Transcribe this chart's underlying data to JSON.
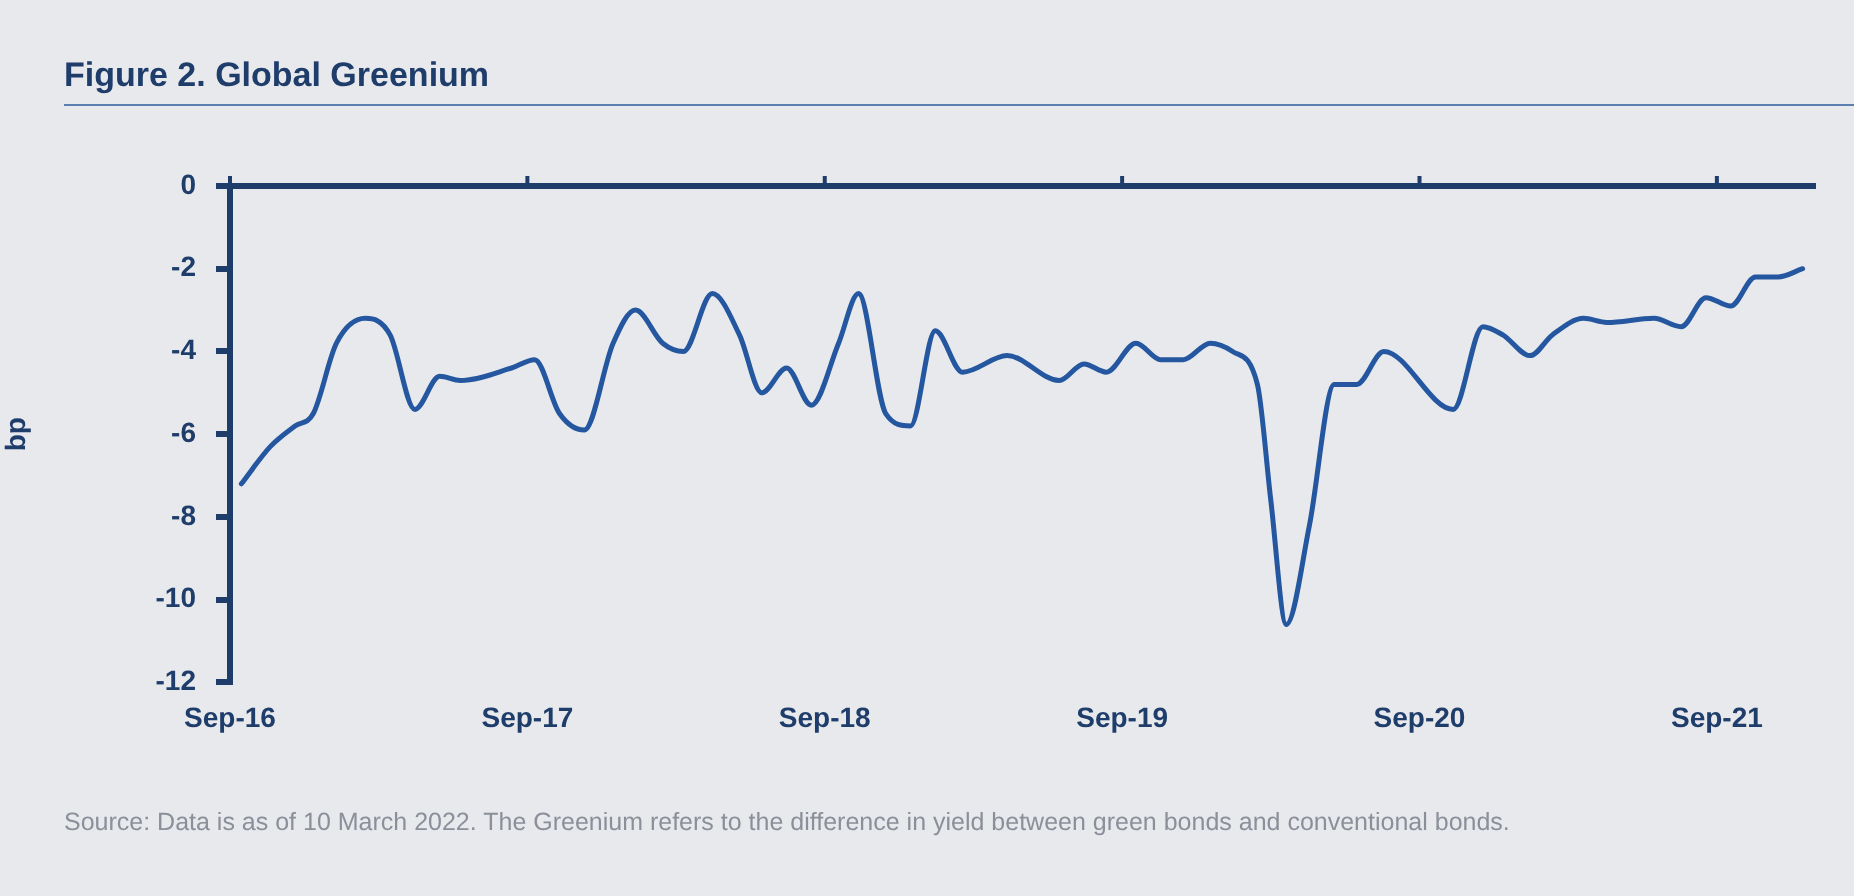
{
  "chart_data": {
    "type": "line",
    "title": "Figure 2. Global Greenium",
    "ylabel": "bp",
    "annotations": [
      "Source: Data is as of 10 March 2022. The Greenium refers to the difference in yield between green bonds and conventional bonds."
    ],
    "x": [
      "2016-09-15",
      "2016-10-20",
      "2016-11-20",
      "2016-12-12",
      "2017-01-10",
      "2017-02-15",
      "2017-03-15",
      "2017-04-15",
      "2017-05-15",
      "2017-06-10",
      "2017-08-12",
      "2017-09-10",
      "2017-10-10",
      "2017-11-10",
      "2017-12-15",
      "2018-01-12",
      "2018-02-15",
      "2018-03-10",
      "2018-04-15",
      "2018-05-18",
      "2018-06-15",
      "2018-07-15",
      "2018-08-15",
      "2018-09-18",
      "2018-10-12",
      "2018-11-15",
      "2018-12-15",
      "2019-01-15",
      "2019-02-18",
      "2019-04-12",
      "2019-06-15",
      "2019-07-15",
      "2019-08-12",
      "2019-09-18",
      "2019-10-18",
      "2019-11-15",
      "2019-12-18",
      "2020-01-15",
      "2020-02-15",
      "2020-03-01",
      "2020-03-20",
      "2020-04-18",
      "2020-05-18",
      "2020-06-15",
      "2020-07-18",
      "2020-10-12",
      "2020-11-18",
      "2020-12-12",
      "2021-01-15",
      "2021-02-12",
      "2021-03-20",
      "2021-04-18",
      "2021-06-15",
      "2021-07-18",
      "2021-08-18",
      "2021-09-18",
      "2021-10-18",
      "2021-11-15",
      "2021-12-15"
    ],
    "series": [
      {
        "color": "#2457a0",
        "values": [
          -7.2,
          -6.3,
          -5.8,
          -5.5,
          -3.8,
          -3.2,
          -3.6,
          -5.4,
          -4.6,
          -4.7,
          -4.4,
          -4.2,
          -5.5,
          -5.9,
          -3.8,
          -3.0,
          -3.8,
          -4.0,
          -2.6,
          -3.6,
          -5.0,
          -4.4,
          -5.3,
          -3.8,
          -2.6,
          -5.5,
          -5.8,
          -3.5,
          -4.5,
          -4.1,
          -4.7,
          -4.3,
          -4.5,
          -3.8,
          -4.2,
          -4.2,
          -3.8,
          -4.0,
          -4.8,
          -7.6,
          -10.6,
          -8.2,
          -4.8,
          -4.8,
          -4.0,
          -5.4,
          -3.4,
          -3.6,
          -4.1,
          -3.6,
          -3.2,
          -3.3,
          -3.2,
          -3.4,
          -2.7,
          -2.9,
          -2.2,
          -2.2,
          -2.0
        ]
      }
    ],
    "xlim": [
      "2016-09",
      "2022-01"
    ],
    "xticks": [
      {
        "value": "2016-09",
        "label": "Sep-16"
      },
      {
        "value": "2017-09",
        "label": "Sep-17"
      },
      {
        "value": "2018-09",
        "label": "Sep-18"
      },
      {
        "value": "2019-09",
        "label": "Sep-19"
      },
      {
        "value": "2020-09",
        "label": "Sep-20"
      },
      {
        "value": "2021-09",
        "label": "Sep-21"
      }
    ],
    "ylim": [
      -12,
      0
    ],
    "yticks": [
      -12,
      -10,
      -8,
      -6,
      -4,
      -2,
      0
    ],
    "legend": false,
    "marker": "none",
    "line_style": "solid"
  }
}
